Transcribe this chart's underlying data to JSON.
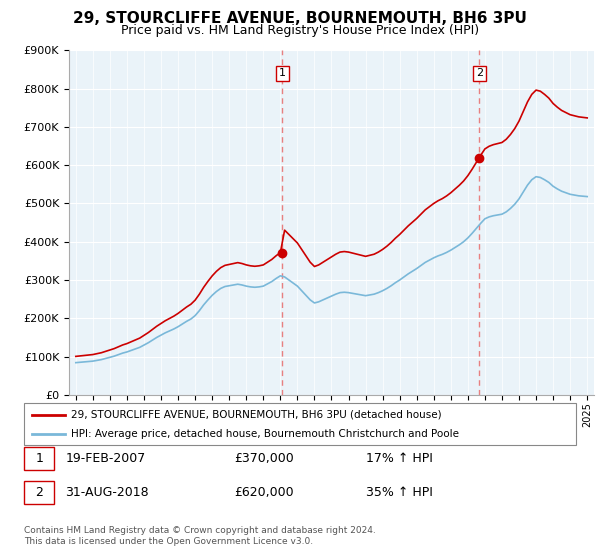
{
  "title": "29, STOURCLIFFE AVENUE, BOURNEMOUTH, BH6 3PU",
  "subtitle": "Price paid vs. HM Land Registry's House Price Index (HPI)",
  "legend_line1": "29, STOURCLIFFE AVENUE, BOURNEMOUTH, BH6 3PU (detached house)",
  "legend_line2": "HPI: Average price, detached house, Bournemouth Christchurch and Poole",
  "footnote": "Contains HM Land Registry data © Crown copyright and database right 2024.\nThis data is licensed under the Open Government Licence v3.0.",
  "transaction1_date": "19-FEB-2007",
  "transaction1_price": "£370,000",
  "transaction1_hpi": "17% ↑ HPI",
  "transaction2_date": "31-AUG-2018",
  "transaction2_price": "£620,000",
  "transaction2_hpi": "35% ↑ HPI",
  "t1_x": 2007.12,
  "t1_y": 370000,
  "t2_x": 2018.67,
  "t2_y": 620000,
  "hpi_color": "#7ab8d9",
  "price_color": "#cc0000",
  "vline_color": "#e88080",
  "ylim": [
    0,
    900000
  ],
  "yticks": [
    0,
    100000,
    200000,
    300000,
    400000,
    500000,
    600000,
    700000,
    800000,
    900000
  ],
  "xlim_left": 1994.6,
  "xlim_right": 2025.4,
  "background_color": "#ffffff",
  "plot_bg_color": "#eaf3f9"
}
